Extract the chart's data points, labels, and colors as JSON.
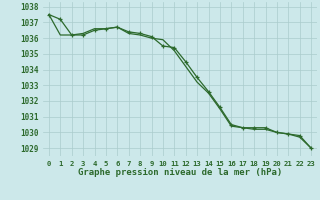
{
  "title": "Graphe pression niveau de la mer (hPa)",
  "background_color": "#cce8ea",
  "grid_color": "#aacccc",
  "line_color": "#2d6a2d",
  "x": [
    0,
    1,
    2,
    3,
    4,
    5,
    6,
    7,
    8,
    9,
    10,
    11,
    12,
    13,
    14,
    15,
    16,
    17,
    18,
    19,
    20,
    21,
    22,
    23
  ],
  "y_marker": [
    1037.5,
    1037.2,
    1036.2,
    1036.2,
    1036.5,
    1036.6,
    1036.7,
    1036.4,
    1036.3,
    1036.1,
    1035.5,
    1035.4,
    1034.5,
    1033.5,
    1032.6,
    1031.6,
    1030.5,
    1030.3,
    1030.3,
    1030.3,
    1030.0,
    1029.9,
    1029.8,
    1029.0
  ],
  "y_smooth": [
    1037.5,
    1036.2,
    1036.2,
    1036.3,
    1036.6,
    1036.6,
    1036.7,
    1036.3,
    1036.2,
    1036.0,
    1035.9,
    1035.2,
    1034.2,
    1033.2,
    1032.5,
    1031.5,
    1030.4,
    1030.3,
    1030.2,
    1030.2,
    1030.0,
    1029.9,
    1029.7,
    1029.0
  ],
  "ylim": [
    1028.5,
    1038.3
  ],
  "yticks": [
    1029,
    1030,
    1031,
    1032,
    1033,
    1034,
    1035,
    1036,
    1037,
    1038
  ],
  "xlim": [
    -0.5,
    23.5
  ],
  "ylabel_fontsize": 5.5,
  "xlabel_fontsize": 6.5
}
